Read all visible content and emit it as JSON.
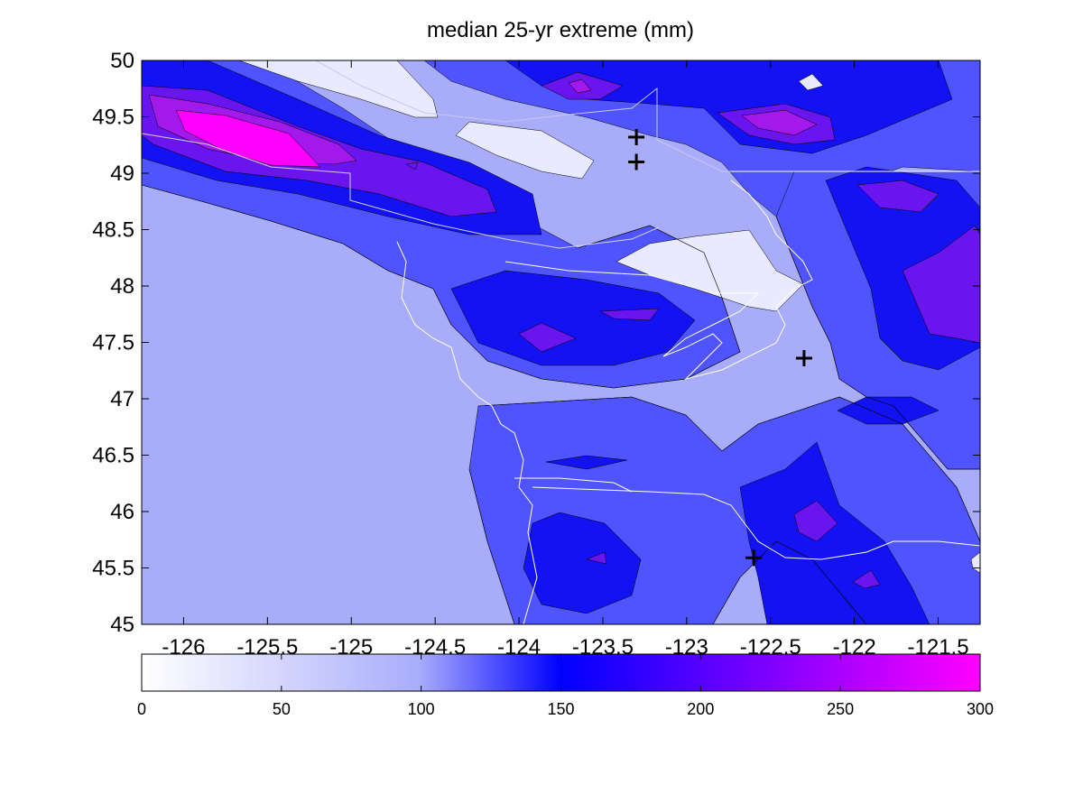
{
  "title": "median 25-yr extreme (mm)",
  "chart_data": {
    "type": "heatmap",
    "title": "median 25-yr extreme (mm)",
    "xlim": [
      -126.25,
      -121.25
    ],
    "ylim": [
      45,
      50
    ],
    "x_ticks": [
      "-126",
      "-125.5",
      "-125",
      "-124.5",
      "-124",
      "-123.5",
      "-123",
      "-122.5",
      "-122",
      "-121.5"
    ],
    "y_ticks": [
      "45",
      "45.5",
      "46",
      "46.5",
      "47",
      "47.5",
      "48",
      "48.5",
      "49",
      "49.5",
      "50"
    ],
    "colorbar": {
      "range": [
        0,
        300
      ],
      "ticks": [
        "0",
        "50",
        "100",
        "150",
        "200",
        "250",
        "300"
      ],
      "colors": {
        "c0": "#ffffff",
        "c1": "#a9adfb",
        "c2": "#0000ff",
        "c3": "#ff00ff"
      }
    },
    "contour_levels": [
      0,
      50,
      100,
      150,
      200,
      250,
      300
    ],
    "fill_colors": [
      "#e9eaff",
      "#a9adf9",
      "#5054ff",
      "#1212f2",
      "#6a14ee",
      "#a318ea",
      "#ff00ff"
    ],
    "markers": [
      {
        "lon": -123.3,
        "lat": 49.32,
        "symbol": "+"
      },
      {
        "lon": -123.3,
        "lat": 49.1,
        "symbol": "+"
      },
      {
        "lon": -122.3,
        "lat": 47.36,
        "symbol": "+"
      },
      {
        "lon": -122.6,
        "lat": 45.59,
        "symbol": "+"
      }
    ]
  }
}
